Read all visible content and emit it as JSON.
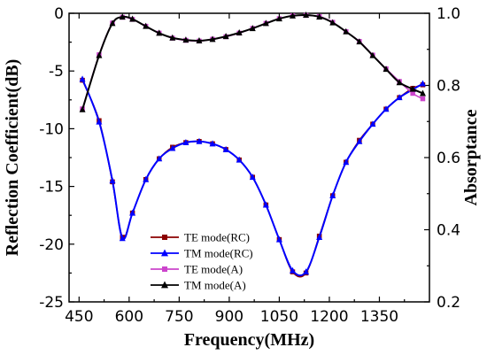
{
  "chart_data": {
    "type": "line",
    "xlabel": "Frequency(MHz)",
    "ylabel_left": "Reflection Coefficient(dB)",
    "ylabel_right": "Absorptance",
    "xlim": [
      420,
      1500
    ],
    "ylim_left": [
      -25,
      0
    ],
    "ylim_right": [
      0.2,
      1.0
    ],
    "xticks": [
      "450",
      "600",
      "750",
      "900",
      "1050",
      "1200",
      "1350"
    ],
    "yticks_left": [
      "0",
      "-5",
      "-10",
      "-15",
      "-20",
      "-25"
    ],
    "yticks_right": [
      "1.0",
      "0.8",
      "0.6",
      "0.4",
      "0.2"
    ],
    "grid": false,
    "legend_position": "lower-left",
    "series": [
      {
        "name": "TE mode(RC)",
        "axis": "left",
        "color": "#8b0000",
        "marker": "square",
        "x": [
          460,
          510,
          550,
          580,
          610,
          650,
          690,
          730,
          770,
          810,
          850,
          890,
          930,
          970,
          1010,
          1050,
          1090,
          1130,
          1170,
          1210,
          1250,
          1290,
          1330,
          1370,
          1410,
          1450,
          1480
        ],
        "y": [
          -5.8,
          -9.3,
          -14.6,
          -19.4,
          -17.3,
          -14.4,
          -12.6,
          -11.6,
          -11.2,
          -11.1,
          -11.3,
          -11.8,
          -12.7,
          -14.2,
          -16.6,
          -19.6,
          -22.4,
          -22.5,
          -19.3,
          -15.8,
          -12.9,
          -11.0,
          -9.6,
          -8.3,
          -7.3,
          -6.5,
          -6.2
        ]
      },
      {
        "name": "TM mode(RC)",
        "axis": "left",
        "color": "#0000ff",
        "marker": "triangle",
        "x": [
          460,
          510,
          550,
          580,
          610,
          650,
          690,
          730,
          770,
          810,
          850,
          890,
          930,
          970,
          1010,
          1050,
          1090,
          1130,
          1170,
          1210,
          1250,
          1290,
          1330,
          1370,
          1410,
          1450,
          1480
        ],
        "y": [
          -5.7,
          -9.4,
          -14.5,
          -19.5,
          -17.3,
          -14.4,
          -12.6,
          -11.7,
          -11.2,
          -11.1,
          -11.3,
          -11.8,
          -12.7,
          -14.2,
          -16.6,
          -19.6,
          -22.3,
          -22.4,
          -19.4,
          -15.8,
          -12.9,
          -11.1,
          -9.6,
          -8.3,
          -7.3,
          -6.6,
          -6.1
        ]
      },
      {
        "name": "TE mode(A)",
        "axis": "right",
        "color": "#cc44cc",
        "marker": "square",
        "x": [
          460,
          510,
          550,
          580,
          610,
          650,
          690,
          730,
          770,
          810,
          850,
          890,
          930,
          970,
          1010,
          1050,
          1090,
          1130,
          1170,
          1210,
          1250,
          1290,
          1330,
          1370,
          1410,
          1450,
          1480
        ],
        "y": [
          0.735,
          0.885,
          0.973,
          0.989,
          0.983,
          0.964,
          0.945,
          0.931,
          0.925,
          0.923,
          0.928,
          0.935,
          0.945,
          0.958,
          0.972,
          0.985,
          0.993,
          0.994,
          0.991,
          0.975,
          0.949,
          0.922,
          0.884,
          0.846,
          0.811,
          0.778,
          0.763
        ]
      },
      {
        "name": "TM mode(A)",
        "axis": "right",
        "color": "#000000",
        "marker": "triangle",
        "x": [
          460,
          510,
          550,
          580,
          610,
          650,
          690,
          730,
          770,
          810,
          850,
          890,
          930,
          970,
          1010,
          1050,
          1090,
          1130,
          1170,
          1210,
          1250,
          1290,
          1330,
          1370,
          1410,
          1450,
          1480
        ],
        "y": [
          0.733,
          0.883,
          0.972,
          0.99,
          0.984,
          0.964,
          0.945,
          0.932,
          0.926,
          0.924,
          0.928,
          0.936,
          0.946,
          0.958,
          0.972,
          0.985,
          0.993,
          0.995,
          0.99,
          0.974,
          0.949,
          0.921,
          0.883,
          0.845,
          0.808,
          0.79,
          0.778
        ]
      }
    ]
  }
}
